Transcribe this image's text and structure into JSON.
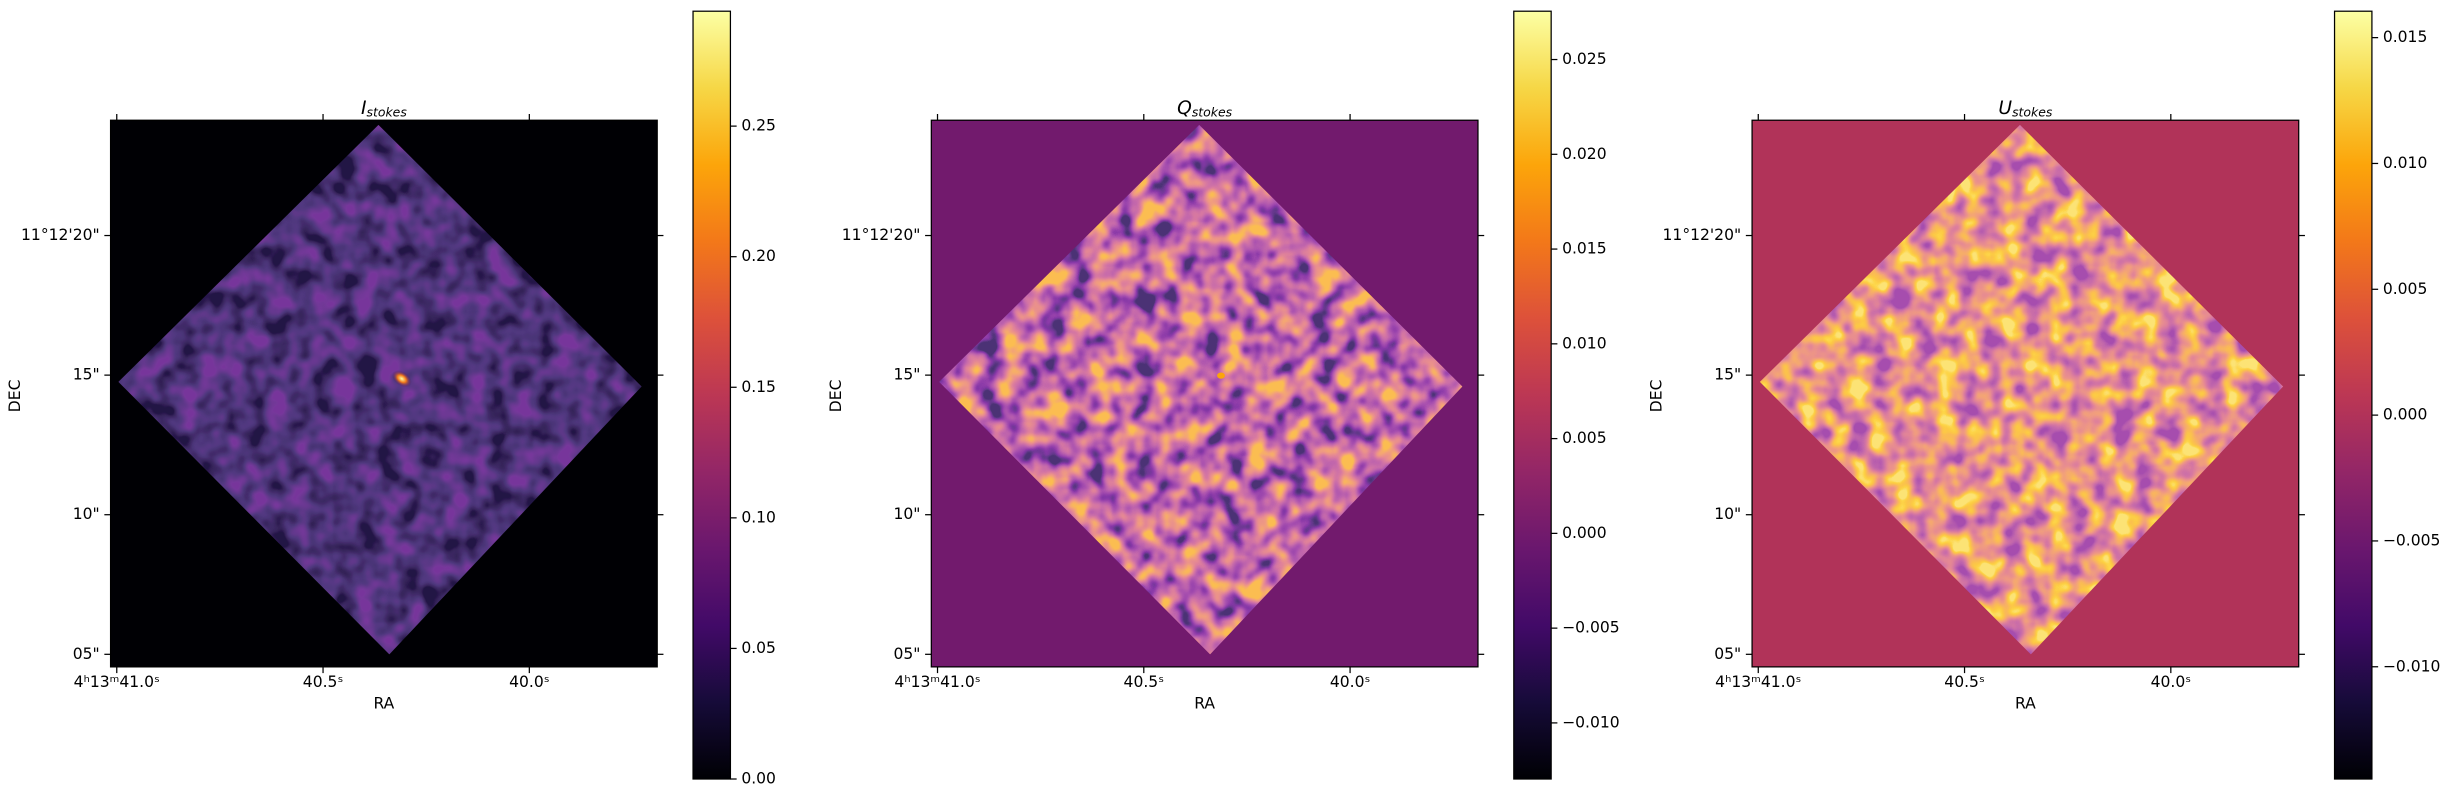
{
  "chart_data": [
    {
      "type": "image",
      "title": "I",
      "title_subscript": "stokes",
      "xlabel": "RA",
      "ylabel": "DEC",
      "xlim": [
        41.015,
        39.69
      ],
      "xticks": [
        {
          "value": 41.0,
          "label": "4ʰ13ᵐ41.0ˢ"
        },
        {
          "value": 40.5,
          "label": "40.5ˢ"
        },
        {
          "value": 40.0,
          "label": "40.0ˢ"
        }
      ],
      "ylim": [
        4.55,
        24.13
      ],
      "yticks": [
        {
          "value": 20,
          "label": "11°12'20\""
        },
        {
          "value": 15,
          "label": "15\""
        },
        {
          "value": 10,
          "label": "10\""
        },
        {
          "value": 5,
          "label": "05\""
        }
      ],
      "colorbar": {
        "colormap": "inferno",
        "lim": [
          0,
          0.294
        ],
        "ticks": [
          {
            "value": 0,
            "label": "0.00"
          },
          {
            "value": 0.05,
            "label": "0.05"
          },
          {
            "value": 0.1,
            "label": "0.10"
          },
          {
            "value": 0.15,
            "label": "0.15"
          },
          {
            "value": 0.2,
            "label": "0.20"
          },
          {
            "value": 0.25,
            "label": "0.25"
          }
        ]
      }
    },
    {
      "type": "image",
      "title": "Q",
      "title_subscript": "stokes",
      "xlabel": "RA",
      "ylabel": "DEC",
      "xlim": [
        41.015,
        39.69
      ],
      "xticks": [
        {
          "value": 41.0,
          "label": "4ʰ13ᵐ41.0ˢ"
        },
        {
          "value": 40.5,
          "label": "40.5ˢ"
        },
        {
          "value": 40.0,
          "label": "40.0ˢ"
        }
      ],
      "ylim": [
        4.55,
        24.13
      ],
      "yticks": [
        {
          "value": 20,
          "label": "11°12'20\""
        },
        {
          "value": 15,
          "label": "15\""
        },
        {
          "value": 10,
          "label": "10\""
        },
        {
          "value": 5,
          "label": "05\""
        }
      ],
      "colorbar": {
        "colormap": "inferno",
        "lim": [
          -0.01296,
          0.02755
        ],
        "ticks": [
          {
            "value": -0.01,
            "label": "−0.010"
          },
          {
            "value": -0.005,
            "label": "−0.005"
          },
          {
            "value": 0,
            "label": "0.000"
          },
          {
            "value": 0.005,
            "label": "0.005"
          },
          {
            "value": 0.01,
            "label": "0.010"
          },
          {
            "value": 0.015,
            "label": "0.015"
          },
          {
            "value": 0.02,
            "label": "0.020"
          },
          {
            "value": 0.025,
            "label": "0.025"
          }
        ]
      }
    },
    {
      "type": "image",
      "title": "U",
      "title_subscript": "stokes",
      "xlabel": "RA",
      "ylabel": "DEC",
      "xlim": [
        41.015,
        39.69
      ],
      "xticks": [
        {
          "value": 41.0,
          "label": "4ʰ13ᵐ41.0ˢ"
        },
        {
          "value": 40.5,
          "label": "40.5ˢ"
        },
        {
          "value": 40.0,
          "label": "40.0ˢ"
        }
      ],
      "ylim": [
        4.55,
        24.13
      ],
      "yticks": [
        {
          "value": 20,
          "label": "11°12'20\""
        },
        {
          "value": 15,
          "label": "15\""
        },
        {
          "value": 10,
          "label": "10\""
        },
        {
          "value": 5,
          "label": "05\""
        }
      ],
      "colorbar": {
        "colormap": "inferno",
        "lim": [
          -0.01446,
          0.01605
        ],
        "ticks": [
          {
            "value": -0.01,
            "label": "−0.010"
          },
          {
            "value": -0.005,
            "label": "−0.005"
          },
          {
            "value": 0,
            "label": "0.000"
          },
          {
            "value": 0.005,
            "label": "0.005"
          },
          {
            "value": 0.01,
            "label": "0.010"
          },
          {
            "value": 0.015,
            "label": "0.015"
          }
        ]
      }
    }
  ]
}
